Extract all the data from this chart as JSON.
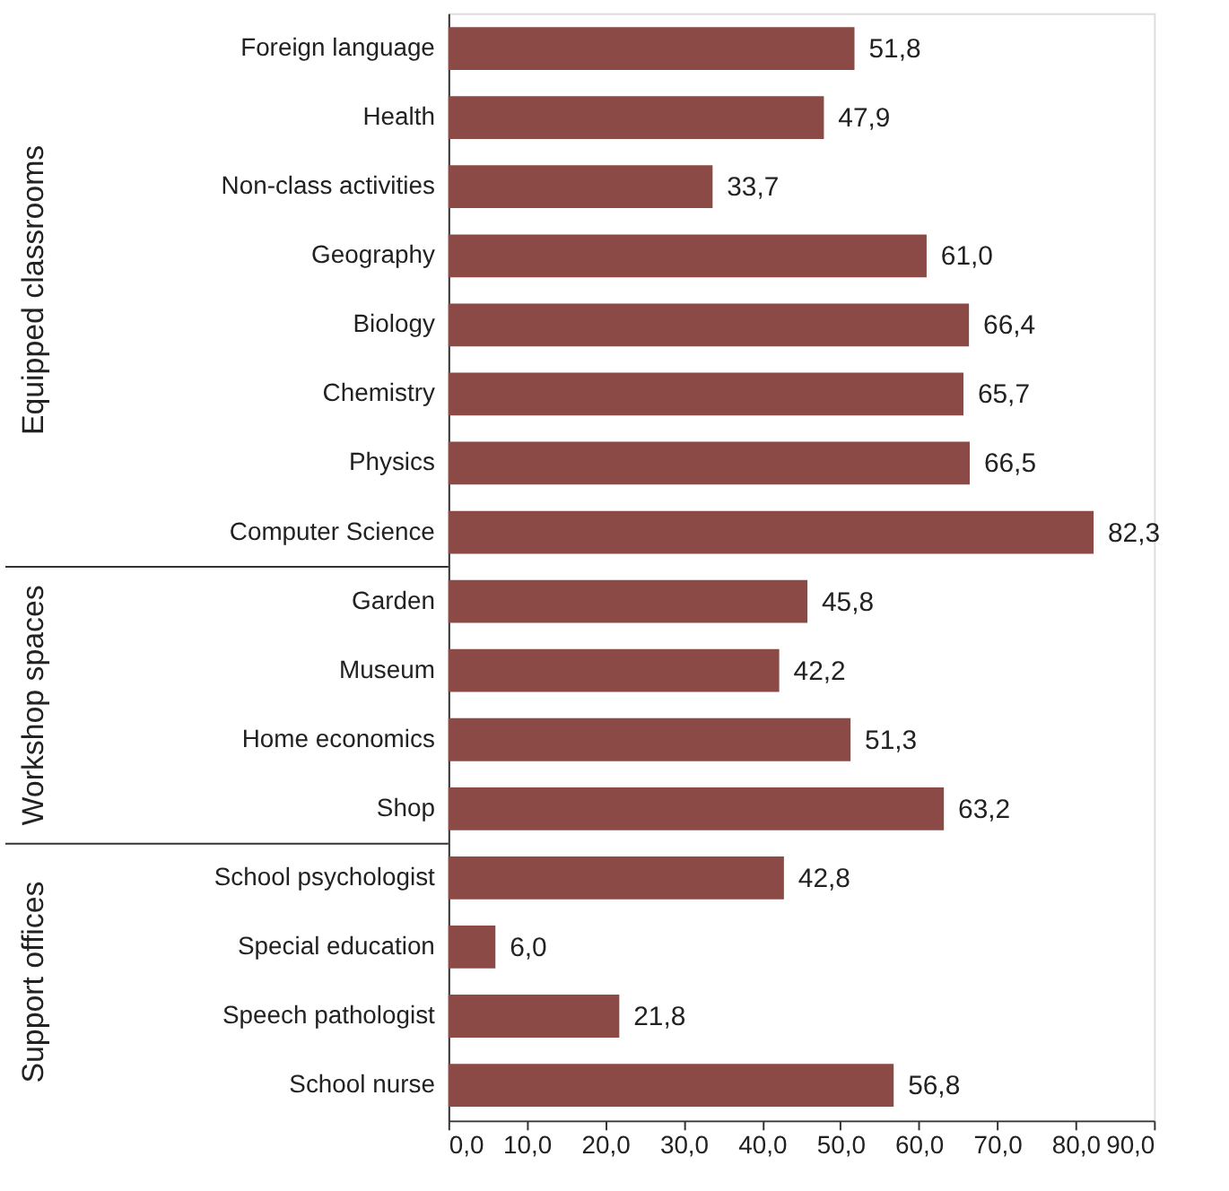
{
  "chart_data": {
    "type": "bar",
    "orientation": "horizontal",
    "categories": [
      "Foreign language",
      "Health",
      "Non-class activities",
      "Geography",
      "Biology",
      "Chemistry",
      "Physics",
      "Computer Science",
      "Garden",
      "Museum",
      "Home economics",
      "Shop",
      "School psychologist",
      "Special education",
      "Speech pathologist",
      "School nurse"
    ],
    "values": [
      51.8,
      47.9,
      33.7,
      61.0,
      66.4,
      65.7,
      66.5,
      82.3,
      45.8,
      42.2,
      51.3,
      63.2,
      42.8,
      6.0,
      21.8,
      56.8
    ],
    "value_labels": [
      "51,8",
      "47,9",
      "33,7",
      "61,0",
      "66,4",
      "65,7",
      "66,5",
      "82,3",
      "45,8",
      "42,2",
      "51,3",
      "63,2",
      "42,8",
      "6,0",
      "21,8",
      "56,8"
    ],
    "color": "#8b4a45",
    "xlim": [
      0,
      90
    ],
    "xticks": [
      {
        "value": 0,
        "label": "0,0"
      },
      {
        "value": 10,
        "label": "10,0"
      },
      {
        "value": 20,
        "label": "20,0"
      },
      {
        "value": 30,
        "label": "30,0"
      },
      {
        "value": 40,
        "label": "40,0"
      },
      {
        "value": 50,
        "label": "50,0"
      },
      {
        "value": 60,
        "label": "60,0"
      },
      {
        "value": 70,
        "label": "70,0"
      },
      {
        "value": 80,
        "label": "80,0"
      },
      {
        "value": 90,
        "label": "90,0"
      }
    ],
    "annotations": [
      "Equipped classrooms",
      "Workshop spaces",
      "Support offices"
    ],
    "grid": false
  }
}
